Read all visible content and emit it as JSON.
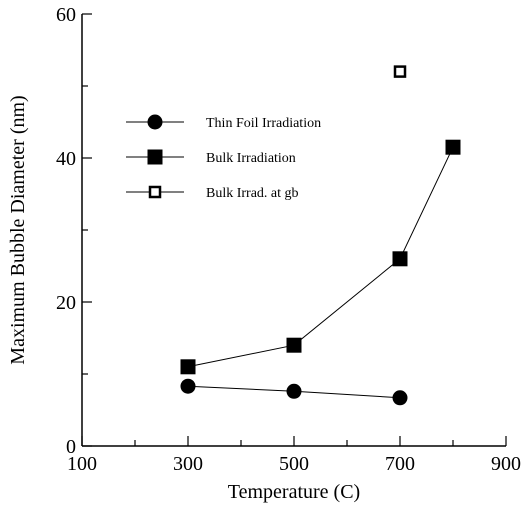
{
  "chart_data": {
    "type": "line",
    "title": "",
    "xlabel": "Temperature (C)",
    "ylabel": "Maximum Bubble Diameter (nm)",
    "xlim": [
      100,
      900
    ],
    "ylim": [
      0,
      60
    ],
    "x_ticks": [
      100,
      300,
      500,
      700,
      900
    ],
    "x_tick_labels": [
      "100",
      "300",
      "500",
      "700",
      "900"
    ],
    "x_minor_ticks": [
      200,
      400,
      600,
      800
    ],
    "y_ticks": [
      0,
      20,
      40,
      60
    ],
    "y_tick_labels": [
      "0",
      "20",
      "40",
      "60"
    ],
    "y_minor_ticks": [
      10,
      30,
      50
    ],
    "grid": false,
    "legend_position": "upper-left",
    "series": [
      {
        "name": "Thin Foil Irradiation",
        "marker": "filled-circle",
        "connected": true,
        "color": "#000000",
        "points": [
          {
            "x": 300,
            "y": 8.3
          },
          {
            "x": 500,
            "y": 7.6
          },
          {
            "x": 700,
            "y": 6.7
          }
        ]
      },
      {
        "name": "Bulk Irradiation",
        "marker": "filled-square",
        "connected": true,
        "color": "#000000",
        "points": [
          {
            "x": 300,
            "y": 11
          },
          {
            "x": 500,
            "y": 14
          },
          {
            "x": 700,
            "y": 26
          },
          {
            "x": 800,
            "y": 41.5
          }
        ]
      },
      {
        "name": "Bulk Irrad. at gb",
        "marker": "open-square",
        "connected": false,
        "color": "#000000",
        "points": [
          {
            "x": 700,
            "y": 52
          }
        ]
      }
    ]
  }
}
